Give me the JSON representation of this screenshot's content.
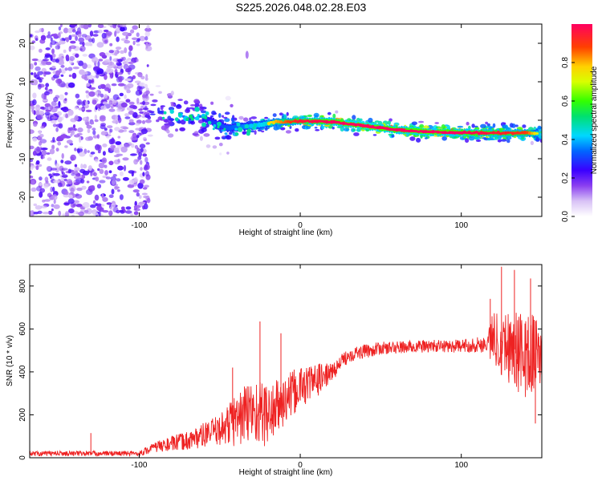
{
  "title": "S225.2026.048.02.28.E03",
  "colors": {
    "snr_line": "#ee2222",
    "axis": "#000000",
    "spec_band_low": "#c9a8f3",
    "spec_band_mid": "#5a00e0",
    "spec_band_high": "#ff2a2a"
  },
  "chart_data": [
    {
      "type": "heatmap",
      "name": "spectrogram",
      "xlabel": "Height of straight line (km)",
      "ylabel": "Frequency (Hz)",
      "xlim": [
        -168,
        150
      ],
      "ylim": [
        -25,
        25
      ],
      "xticks": [
        -100,
        0,
        100
      ],
      "xtick_labels": [
        "-100",
        "0",
        "100"
      ],
      "yticks": [
        -20,
        -10,
        0,
        10,
        20
      ],
      "ytick_labels": [
        "-20",
        "-10",
        "0",
        "10",
        "20"
      ],
      "ridge": {
        "x": [
          -100,
          -80,
          -60,
          -45,
          -30,
          -15,
          0,
          20,
          40,
          60,
          80,
          100,
          120,
          140,
          150
        ],
        "freq": [
          3,
          1.5,
          0.5,
          -2,
          -1.5,
          -0.5,
          -0.2,
          -0.3,
          -1.5,
          -2.5,
          -3.0,
          -3.2,
          -3.3,
          -3.3,
          -3.5
        ],
        "amplitude": [
          0.25,
          0.35,
          0.35,
          0.45,
          0.55,
          0.75,
          0.9,
          0.95,
          0.98,
          0.95,
          0.97,
          0.95,
          0.9,
          0.85,
          0.6
        ]
      },
      "noise_region": {
        "x": [
          -168,
          -100
        ],
        "freq": [
          -25,
          25
        ],
        "amplitude": 0.15
      },
      "colorbar": {
        "label": "Normalized spectral amplitude",
        "ticks": [
          0.0,
          0.2,
          0.4,
          0.6,
          0.8
        ],
        "tick_labels": [
          "0.0",
          "0.2",
          "0.4",
          "0.6",
          "0.8"
        ],
        "range": [
          0,
          1
        ]
      }
    },
    {
      "type": "line",
      "name": "snr",
      "xlabel": "Height of straight line (km)",
      "ylabel": "SNR (10 * v/v)",
      "xlim": [
        -168,
        150
      ],
      "ylim": [
        0,
        900
      ],
      "xticks": [
        -100,
        0,
        100
      ],
      "xtick_labels": [
        "-100",
        "0",
        "100"
      ],
      "yticks": [
        0,
        200,
        400,
        600,
        800
      ],
      "ytick_labels": [
        "0",
        "200",
        "400",
        "600",
        "800"
      ],
      "envelope": {
        "x": [
          -168,
          -100,
          -90,
          -70,
          -50,
          -40,
          -30,
          -20,
          -10,
          0,
          10,
          20,
          30,
          50,
          80,
          100,
          115,
          120,
          130,
          140,
          150
        ],
        "mean": [
          20,
          20,
          50,
          80,
          130,
          180,
          220,
          200,
          260,
          330,
          360,
          400,
          480,
          510,
          520,
          520,
          530,
          560,
          520,
          470,
          500
        ],
        "spread": [
          12,
          12,
          25,
          45,
          70,
          130,
          160,
          150,
          120,
          100,
          80,
          40,
          35,
          30,
          30,
          30,
          40,
          130,
          180,
          200,
          180
        ]
      },
      "peaks": [
        {
          "x": -130,
          "y": 115
        },
        {
          "x": -42,
          "y": 420
        },
        {
          "x": -25,
          "y": 635
        },
        {
          "x": -12,
          "y": 580
        },
        {
          "x": 125,
          "y": 890
        },
        {
          "x": 133,
          "y": 875
        },
        {
          "x": 143,
          "y": 835
        },
        {
          "x": 118,
          "y": 740
        },
        {
          "x": 146,
          "y": 160
        }
      ]
    }
  ]
}
